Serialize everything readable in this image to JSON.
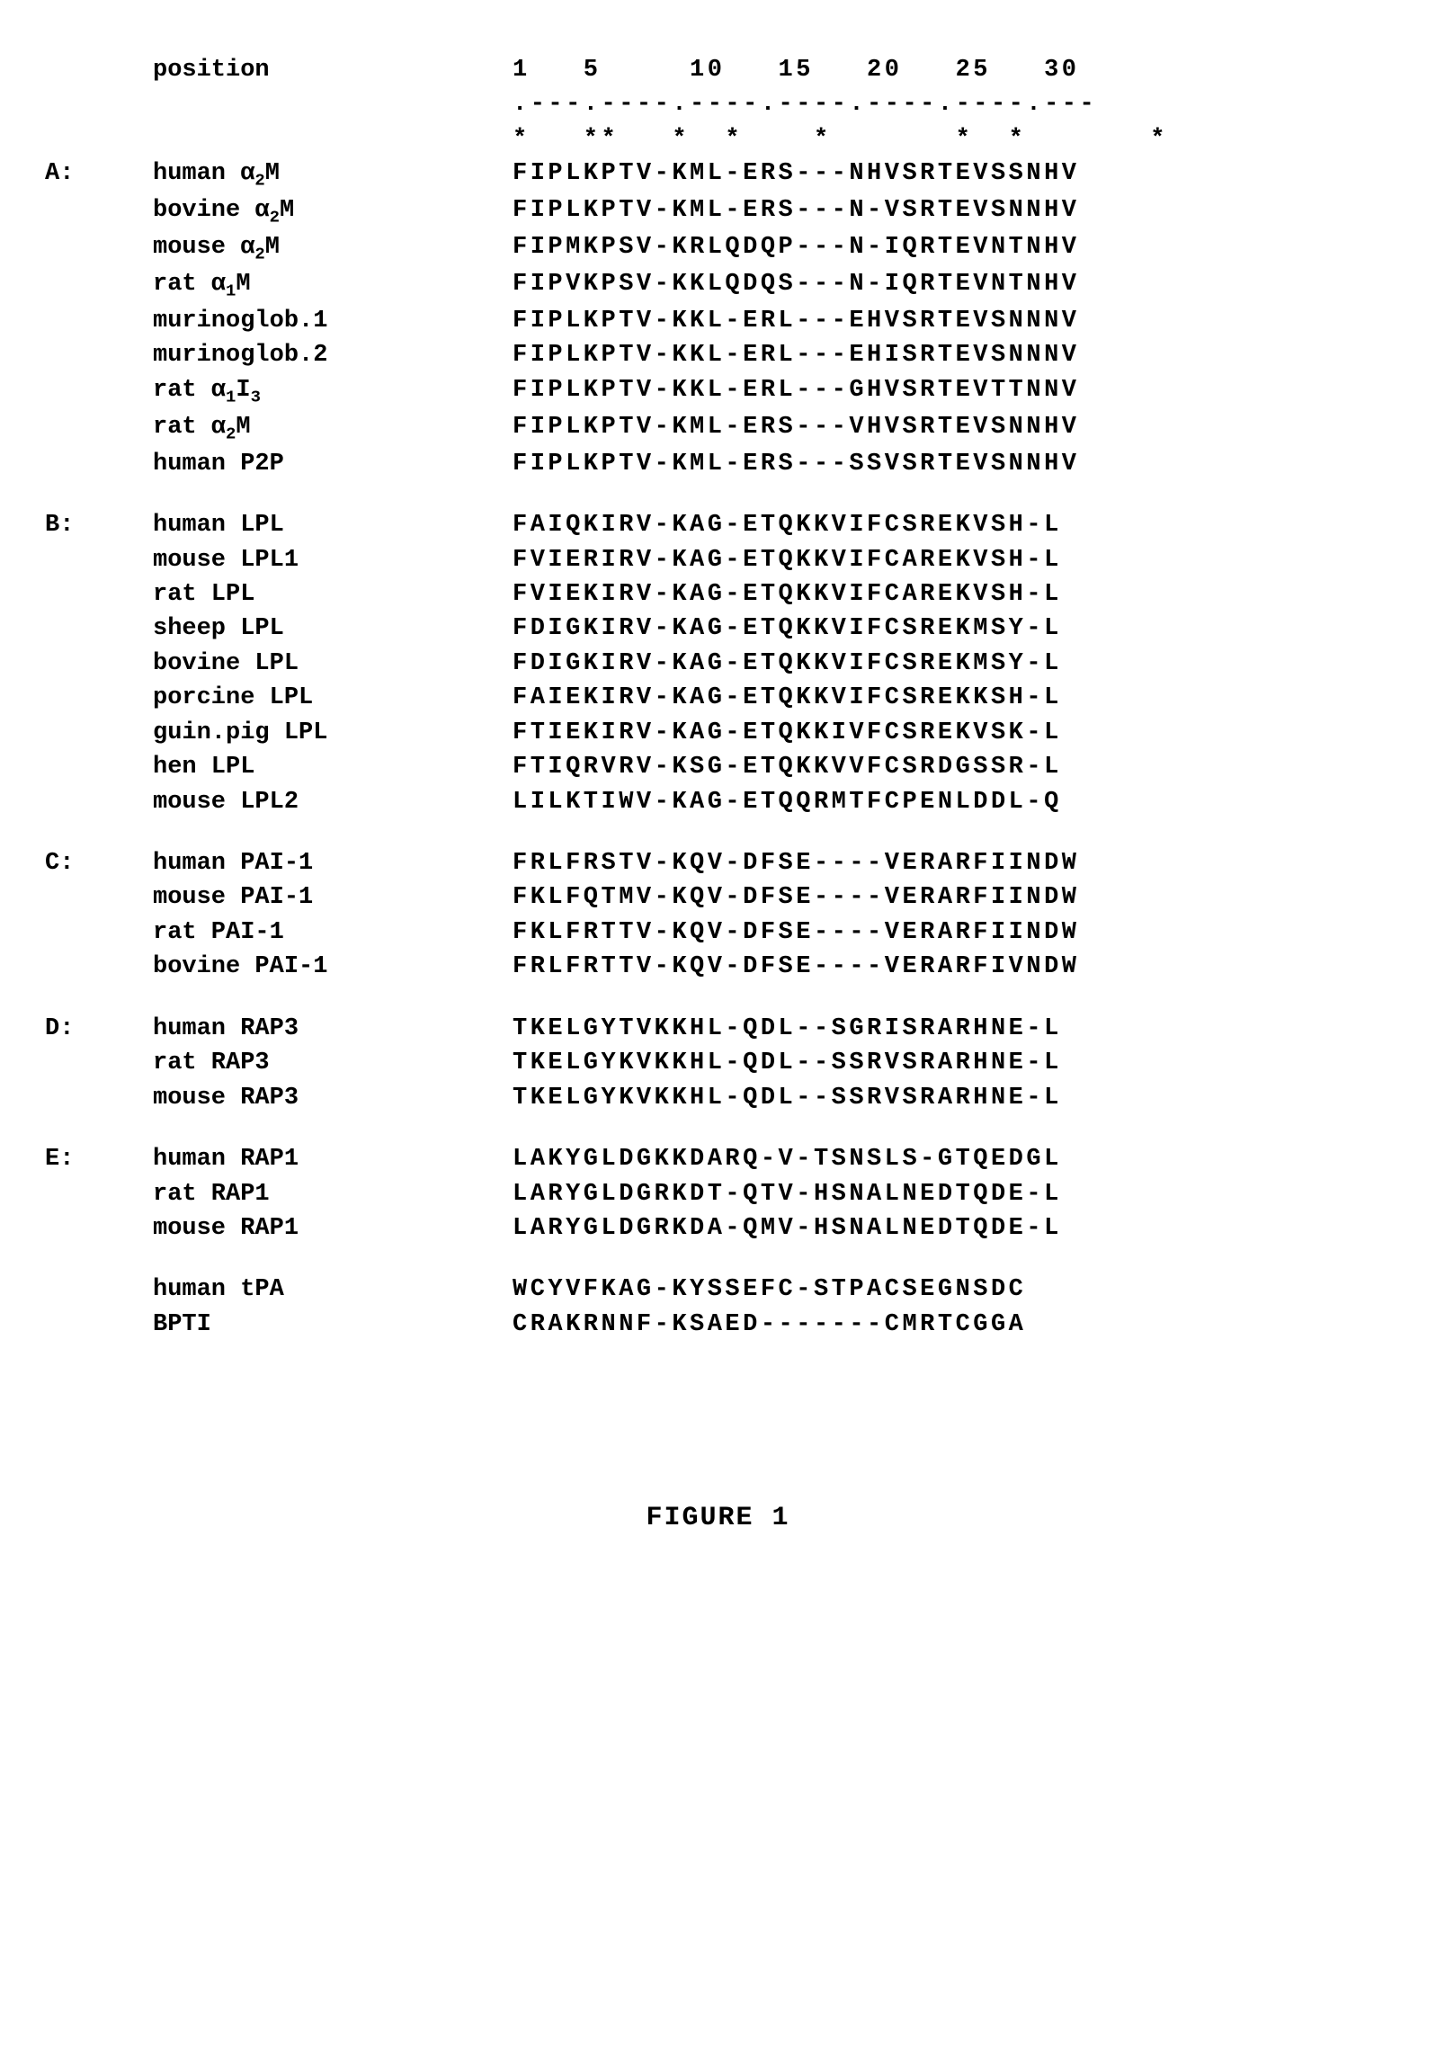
{
  "header": {
    "position_label": "position",
    "position_numbers": "1   5     10   15   20   25   30",
    "ruler": ".---.----.----.----.----.----.---",
    "stars": "*   **   *  *    *       *  *       *"
  },
  "groups": [
    {
      "prefix": "A:",
      "rows": [
        {
          "label_html": "human &alpha;<sub>2</sub>M",
          "seq": "FIPLKPTV-KML-ERS---NHVSRTEVSSNHV"
        },
        {
          "label_html": "bovine &alpha;<sub>2</sub>M",
          "seq": "FIPLKPTV-KML-ERS---N-VSRTEVSNNHV"
        },
        {
          "label_html": "mouse &alpha;<sub>2</sub>M",
          "seq": "FIPMKPSV-KRLQDQP---N-IQRTEVNTNHV"
        },
        {
          "label_html": "rat &alpha;<sub>1</sub>M",
          "seq": "FIPVKPSV-KKLQDQS---N-IQRTEVNTNHV"
        },
        {
          "label_html": "murinoglob.1",
          "seq": "FIPLKPTV-KKL-ERL---EHVSRTEVSNNNV"
        },
        {
          "label_html": "murinoglob.2",
          "seq": "FIPLKPTV-KKL-ERL---EHISRTEVSNNNV"
        },
        {
          "label_html": "rat &alpha;<sub>1</sub>I<sub>3</sub>",
          "seq": "FIPLKPTV-KKL-ERL---GHVSRTEVTTNNV"
        },
        {
          "label_html": "rat &alpha;<sub>2</sub>M",
          "seq": "FIPLKPTV-KML-ERS---VHVSRTEVSNNHV"
        },
        {
          "label_html": "human P2P",
          "seq": "FIPLKPTV-KML-ERS---SSVSRTEVSNNHV"
        }
      ]
    },
    {
      "prefix": "B:",
      "rows": [
        {
          "label_html": "human LPL",
          "seq": "FAIQKIRV-KAG-ETQKKVIFCSREKVSH-L"
        },
        {
          "label_html": "mouse LPL1",
          "seq": "FVIERIRV-KAG-ETQKKVIFCAREKVSH-L"
        },
        {
          "label_html": "rat LPL",
          "seq": "FVIEKIRV-KAG-ETQKKVIFCAREKVSH-L"
        },
        {
          "label_html": "sheep LPL",
          "seq": "FDIGKIRV-KAG-ETQKKVIFCSREKMSY-L"
        },
        {
          "label_html": "bovine LPL",
          "seq": "FDIGKIRV-KAG-ETQKKVIFCSREKMSY-L"
        },
        {
          "label_html": "porcine LPL",
          "seq": "FAIEKIRV-KAG-ETQKKVIFCSREKKSH-L"
        },
        {
          "label_html": "guin.pig LPL",
          "seq": "FTIEKIRV-KAG-ETQKKIVFCSREKVSK-L"
        },
        {
          "label_html": "hen LPL",
          "seq": "FTIQRVRV-KSG-ETQKKVVFCSRDGSSR-L"
        },
        {
          "label_html": "mouse LPL2",
          "seq": "LILKTIWV-KAG-ETQQRMTFCPENLDDL-Q"
        }
      ]
    },
    {
      "prefix": "C:",
      "rows": [
        {
          "label_html": "human PAI-1",
          "seq": "FRLFRSTV-KQV-DFSE----VERARFIINDW"
        },
        {
          "label_html": "mouse PAI-1",
          "seq": "FKLFQTMV-KQV-DFSE----VERARFIINDW"
        },
        {
          "label_html": "rat PAI-1",
          "seq": "FKLFRTTV-KQV-DFSE----VERARFIINDW"
        },
        {
          "label_html": "bovine PAI-1",
          "seq": "FRLFRTTV-KQV-DFSE----VERARFIVNDW"
        }
      ]
    },
    {
      "prefix": "D:",
      "rows": [
        {
          "label_html": "human RAP3",
          "seq": "TKELGYTVKKHL-QDL--SGRISRARHNE-L"
        },
        {
          "label_html": "rat RAP3",
          "seq": "TKELGYKVKKHL-QDL--SSRVSRARHNE-L"
        },
        {
          "label_html": "mouse RAP3",
          "seq": "TKELGYKVKKHL-QDL--SSRVSRARHNE-L"
        }
      ]
    },
    {
      "prefix": "E:",
      "rows": [
        {
          "label_html": "human RAP1",
          "seq": "LAKYGLDGKKDARQ-V-TSNSLS-GTQEDGL"
        },
        {
          "label_html": "rat RAP1",
          "seq": "LARYGLDGRKDT-QTV-HSNALNEDTQDE-L"
        },
        {
          "label_html": "mouse RAP1",
          "seq": "LARYGLDGRKDA-QMV-HSNALNEDTQDE-L"
        }
      ]
    },
    {
      "prefix": "",
      "rows": [
        {
          "label_html": "human tPA",
          "seq": "WCYVFKAG-KYSSEFC-STPACSEGNSDC"
        },
        {
          "label_html": "BPTI",
          "seq": "CRAKRNNF-KSAED-------CMRTCGGA"
        }
      ]
    }
  ],
  "figure_title": "FIGURE 1"
}
